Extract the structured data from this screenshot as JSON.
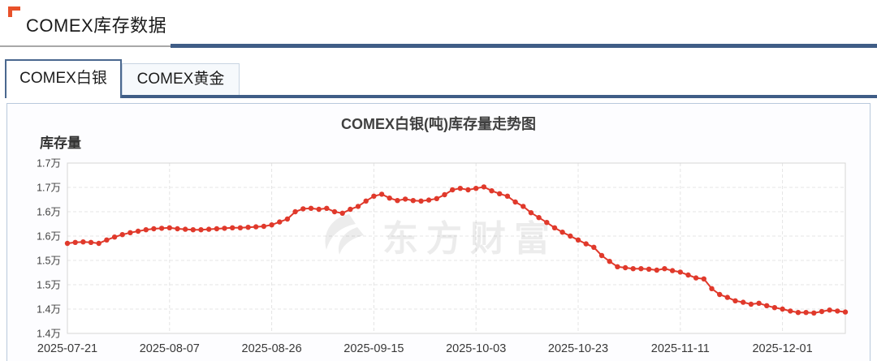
{
  "page": {
    "title": "COMEX库存数据",
    "accent_color": "#e8512a",
    "divider_color": "#3f5d86"
  },
  "tabs": [
    {
      "label": "COMEX白银",
      "active": true
    },
    {
      "label": "COMEX黄金",
      "active": false
    }
  ],
  "chart_data": {
    "type": "line",
    "title": "COMEX白银(吨)库存量走势图",
    "ylabel": "库存量",
    "watermark": "东方财富",
    "line_color": "#e0392b",
    "grid": "dashed",
    "legend_position": "none",
    "y_axis": {
      "min": 13700,
      "max": 17200,
      "tick_interval": 500
    },
    "y_tick_labels": [
      "1.7万",
      "1.7万",
      "1.6万",
      "1.6万",
      "1.5万",
      "1.5万",
      "1.4万",
      "1.4万"
    ],
    "x_tick_labels": [
      "2025-07-21",
      "2025-08-07",
      "2025-08-26",
      "2025-09-15",
      "2025-10-03",
      "2025-10-23",
      "2025-11-11",
      "2025-12-01"
    ],
    "x_tick_indices": [
      0,
      13,
      26,
      39,
      52,
      65,
      78,
      91
    ],
    "values": [
      15550,
      15570,
      15580,
      15570,
      15550,
      15620,
      15680,
      15730,
      15770,
      15800,
      15830,
      15850,
      15860,
      15870,
      15850,
      15840,
      15830,
      15830,
      15840,
      15850,
      15860,
      15870,
      15870,
      15880,
      15890,
      15900,
      15930,
      15990,
      16050,
      16200,
      16260,
      16270,
      16250,
      16270,
      16200,
      16170,
      16250,
      16310,
      16420,
      16520,
      16560,
      16480,
      16430,
      16460,
      16430,
      16420,
      16440,
      16470,
      16550,
      16650,
      16680,
      16650,
      16680,
      16710,
      16630,
      16570,
      16520,
      16400,
      16310,
      16180,
      16080,
      15980,
      15870,
      15780,
      15700,
      15620,
      15540,
      15470,
      15300,
      15180,
      15070,
      15050,
      15030,
      15030,
      15020,
      15000,
      15030,
      14990,
      14960,
      14900,
      14840,
      14820,
      14620,
      14500,
      14440,
      14370,
      14340,
      14300,
      14320,
      14270,
      14230,
      14200,
      14160,
      14130,
      14130,
      14120,
      14150,
      14180,
      14160,
      14140
    ]
  }
}
